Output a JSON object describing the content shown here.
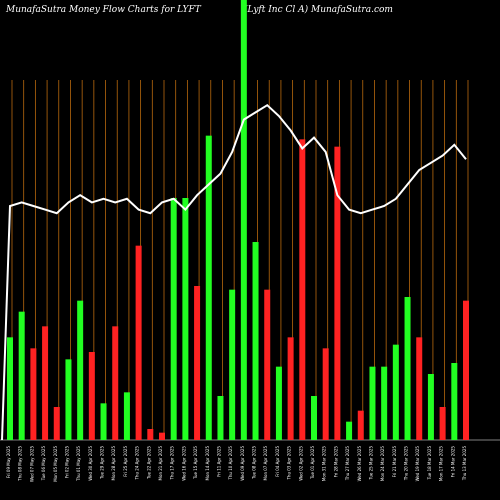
{
  "header": {
    "title_left": "MunafaSutra  Money Flow  Charts for LYFT",
    "title_right": "(Lyft Inc Cl A) MunafaSutra.com"
  },
  "colors": {
    "background": "#000000",
    "grid": "#b8680e",
    "positive": "#22ff22",
    "negative": "#ff2222",
    "line": "#ffffff"
  },
  "chart_data": {
    "type": "bar",
    "title": "MunafaSutra  Money Flow  Charts for LYFT",
    "subtitle": "(Lyft Inc Cl A) MunafaSutra.com",
    "categories": [
      "Fri 09 May 2025",
      "Thu 08 May 2025",
      "Wed 07 May 2025",
      "Tue 06 May 2025",
      "Mon 05 May 2025",
      "Fri 02 May 2025",
      "Thu 01 May 2025",
      "Wed 30 Apr 2025",
      "Tue 29 Apr 2025",
      "Mon 28 Apr 2025",
      "Fri 25 Apr 2025",
      "Thu 24 Apr 2025",
      "Tue 22 Apr 2025",
      "Mon 21 Apr 2025",
      "Thu 17 Apr 2025",
      "Wed 16 Apr 2025",
      "Tue 15 Apr 2025",
      "Mon 14 Apr 2025",
      "Fri 11 Apr 2025",
      "Thu 10 Apr 2025",
      "Wed 09 Apr 2025",
      "Tue 08 Apr 2025",
      "Mon 07 Apr 2025",
      "Fri 04 Apr 2025",
      "Thu 03 Apr 2025",
      "Wed 02 Apr 2025",
      "Tue 01 Apr 2025",
      "Mon 31 Mar 2025",
      "Fri 28 Mar 2025",
      "Thu 27 Mar 2025",
      "Wed 26 Mar 2025",
      "Tue 25 Mar 2025",
      "Mon 24 Mar 2025",
      "Fri 21 Mar 2025",
      "Thu 20 Mar 2025",
      "Wed 19 Mar 2025",
      "Tue 18 Mar 2025",
      "Mon 17 Mar 2025",
      "Fri 14 Mar 2025",
      "Thu 13 Mar 2025"
    ],
    "flow": [
      "green",
      "green",
      "red",
      "red",
      "red",
      "green",
      "green",
      "red",
      "green",
      "red",
      "green",
      "red",
      "red",
      "red",
      "green",
      "green",
      "red",
      "green",
      "green",
      "green",
      "green",
      "green",
      "red",
      "green",
      "red",
      "red",
      "green",
      "red",
      "red",
      "green",
      "red",
      "green",
      "green",
      "green",
      "green",
      "red",
      "green",
      "red",
      "green",
      "red"
    ],
    "values": [
      28,
      35,
      25,
      31,
      9,
      22,
      38,
      24,
      10,
      31,
      13,
      53,
      3,
      2,
      66,
      66,
      42,
      83,
      12,
      41,
      120,
      54,
      41,
      20,
      28,
      82,
      12,
      25,
      80,
      5,
      8,
      20,
      20,
      26,
      39,
      28,
      18,
      9,
      21,
      38
    ],
    "line": [
      65,
      66,
      65,
      64,
      63,
      66,
      68,
      66,
      67,
      66,
      67,
      64,
      63,
      66,
      67,
      64,
      68,
      71,
      74,
      80,
      89,
      91,
      93,
      90,
      86,
      81,
      84,
      80,
      68,
      64,
      63,
      64,
      65,
      67,
      71,
      75,
      77,
      79,
      82,
      78
    ],
    "ylim": [
      0,
      120
    ],
    "line_ylim": [
      0,
      100
    ],
    "grid": true
  }
}
